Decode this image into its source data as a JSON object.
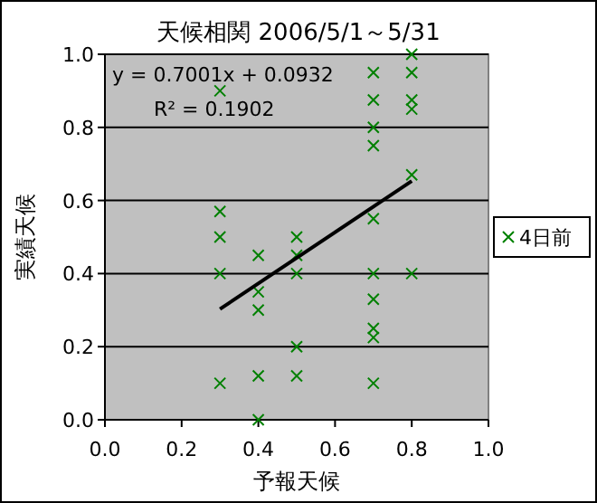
{
  "chart_data": {
    "type": "scatter",
    "title": "天候相関  2006/5/1～5/31",
    "xlabel": "予報天候",
    "ylabel": "実績天候",
    "xlim": [
      0,
      1
    ],
    "ylim": [
      0,
      1
    ],
    "xticks": [
      {
        "value": 0,
        "label": "0.0"
      },
      {
        "value": 0.2,
        "label": "0.2"
      },
      {
        "value": 0.4,
        "label": "0.4"
      },
      {
        "value": 0.6,
        "label": "0.6"
      },
      {
        "value": 0.8,
        "label": "0.8"
      },
      {
        "value": 1,
        "label": "1.0"
      }
    ],
    "yticks": [
      {
        "value": 0,
        "label": "0.0"
      },
      {
        "value": 0.2,
        "label": "0.2"
      },
      {
        "value": 0.4,
        "label": "0.4"
      },
      {
        "value": 0.6,
        "label": "0.6"
      },
      {
        "value": 0.8,
        "label": "0.8"
      },
      {
        "value": 1,
        "label": "1.0"
      }
    ],
    "grid": "y",
    "legend": "right",
    "series": [
      {
        "name": "4日前",
        "marker": "cross",
        "color": "#008000",
        "x": [
          0.3,
          0.3,
          0.3,
          0.3,
          0.3,
          0.4,
          0.4,
          0.4,
          0.4,
          0.4,
          0.5,
          0.5,
          0.5,
          0.5,
          0.5,
          0.7,
          0.7,
          0.7,
          0.7,
          0.7,
          0.7,
          0.7,
          0.7,
          0.7,
          0.7,
          0.8,
          0.8,
          0.8,
          0.8,
          0.8,
          0.8
        ],
        "values": [
          0.9,
          0.57,
          0.5,
          0.4,
          0.1,
          0.45,
          0.35,
          0.3,
          0.12,
          0,
          0.5,
          0.45,
          0.4,
          0.2,
          0.12,
          0.95,
          0.875,
          0.8,
          0.75,
          0.55,
          0.4,
          0.33,
          0.25,
          0.225,
          0.1,
          1,
          0.95,
          0.875,
          0.85,
          0.67,
          0.4
        ]
      },
      {
        "type": "line",
        "marker": "none",
        "color": "#000000",
        "x": [
          0.3,
          0.8
        ],
        "values": [
          0.303,
          0.653
        ]
      }
    ],
    "annotations": [
      "y = 0.7001x + 0.0932",
      "R² = 0.1902"
    ]
  }
}
